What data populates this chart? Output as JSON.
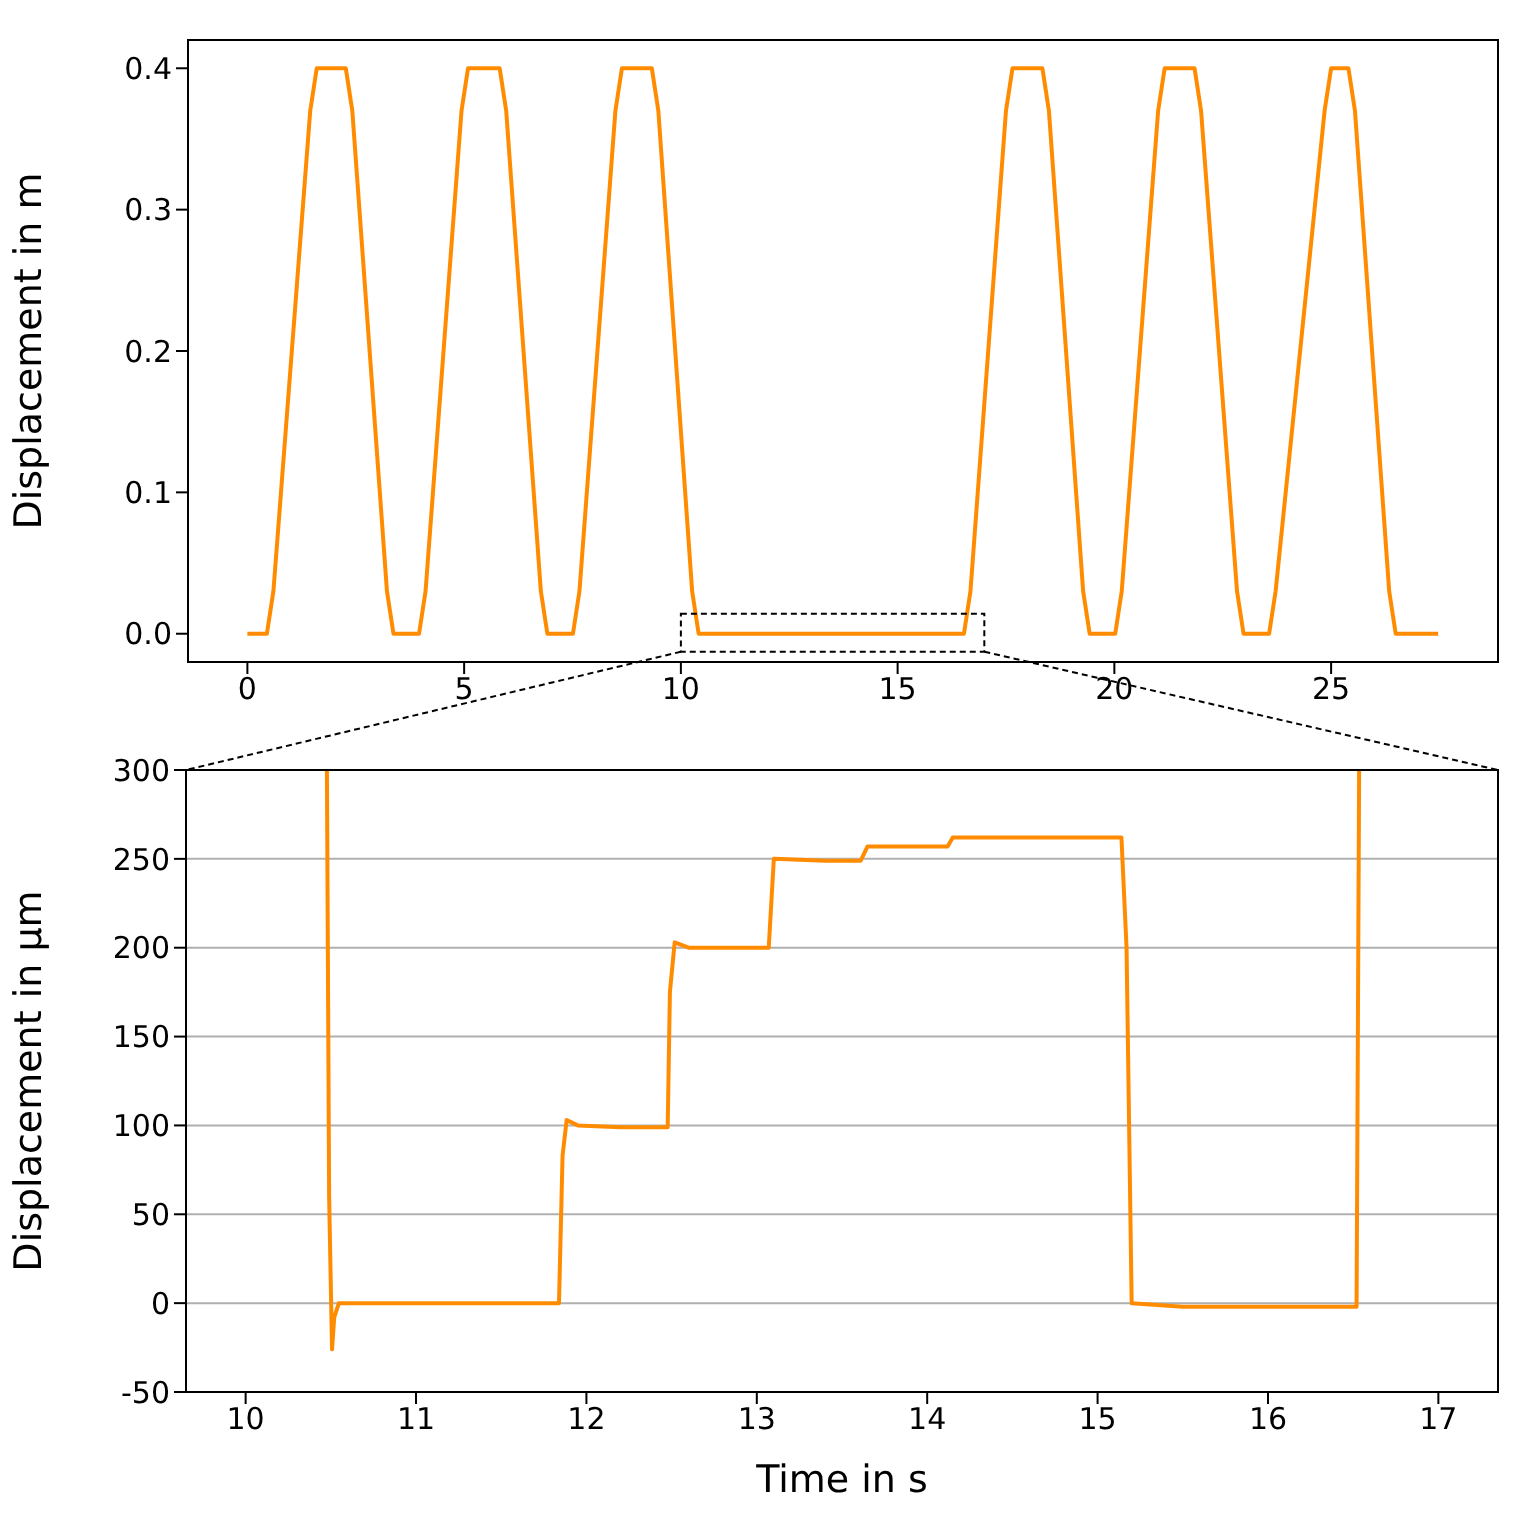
{
  "chart_data": [
    {
      "type": "line",
      "ylabel": "Displacement in m",
      "xlim": [
        -1.37,
        28.85
      ],
      "xticks": [
        0,
        5,
        10,
        15,
        20,
        25
      ],
      "ylim": [
        -0.02,
        0.42
      ],
      "yticks": [
        {
          "value": 0,
          "label": "0.0"
        },
        0.1,
        0.2,
        0.3,
        0.4
      ],
      "grid": false,
      "marker": "none",
      "line_style": "solid",
      "series": [
        {
          "color": "#ff8c00",
          "x": [
            0,
            0.45,
            0.6,
            1.45,
            1.6,
            2.27,
            2.42,
            3.22,
            3.37,
            3.96,
            4.11,
            4.94,
            5.09,
            5.82,
            5.97,
            6.77,
            6.92,
            7.51,
            7.66,
            8.49,
            8.64,
            9.33,
            9.48,
            10.26,
            10.41,
            16.53,
            16.68,
            17.5,
            17.65,
            18.34,
            18.49,
            19.28,
            19.43,
            20.02,
            20.17,
            21.01,
            21.16,
            21.85,
            22.0,
            22.83,
            22.98,
            23.57,
            23.72,
            24.85,
            25.0,
            25.4,
            25.55,
            26.34,
            26.49,
            27.47
          ],
          "values": [
            0,
            0,
            0.03,
            0.37,
            0.4,
            0.4,
            0.37,
            0.03,
            0,
            0,
            0.03,
            0.37,
            0.4,
            0.4,
            0.37,
            0.03,
            0,
            0,
            0.03,
            0.37,
            0.4,
            0.4,
            0.37,
            0.03,
            0,
            0,
            0.03,
            0.37,
            0.4,
            0.4,
            0.37,
            0.03,
            0,
            0,
            0.03,
            0.37,
            0.4,
            0.4,
            0.37,
            0.03,
            0,
            0,
            0.03,
            0.37,
            0.4,
            0.4,
            0.37,
            0.03,
            0,
            0
          ]
        }
      ]
    },
    {
      "type": "line",
      "xlabel": "Time in s",
      "ylabel": "Displacement in µm",
      "xlim": [
        9.65,
        17.35
      ],
      "xticks": [
        10,
        11,
        12,
        13,
        14,
        15,
        16,
        17
      ],
      "ylim": [
        -50,
        300
      ],
      "yticks": [
        -50,
        0,
        50,
        100,
        150,
        200,
        250,
        300
      ],
      "grid": "y",
      "marker": "none",
      "line_style": "solid",
      "series": [
        {
          "color": "#ff8c00",
          "x": [
            10.477,
            10.49,
            10.507,
            10.52,
            10.547,
            11.0,
            11.5,
            11.839,
            11.86,
            11.884,
            11.95,
            12.2,
            12.477,
            12.49,
            12.518,
            12.6,
            13.07,
            13.1,
            13.4,
            13.61,
            13.65,
            14.12,
            14.15,
            14.6,
            15.14,
            15.17,
            15.2,
            15.5,
            16.0,
            16.52,
            16.535
          ],
          "values": [
            300,
            60,
            -26,
            -8,
            0,
            0,
            0,
            0,
            83,
            103,
            100,
            99,
            99,
            175,
            203,
            200,
            200,
            250,
            249,
            249,
            257,
            257,
            262,
            262,
            262,
            200,
            0,
            -2,
            -2,
            -2,
            300
          ]
        }
      ]
    }
  ]
}
